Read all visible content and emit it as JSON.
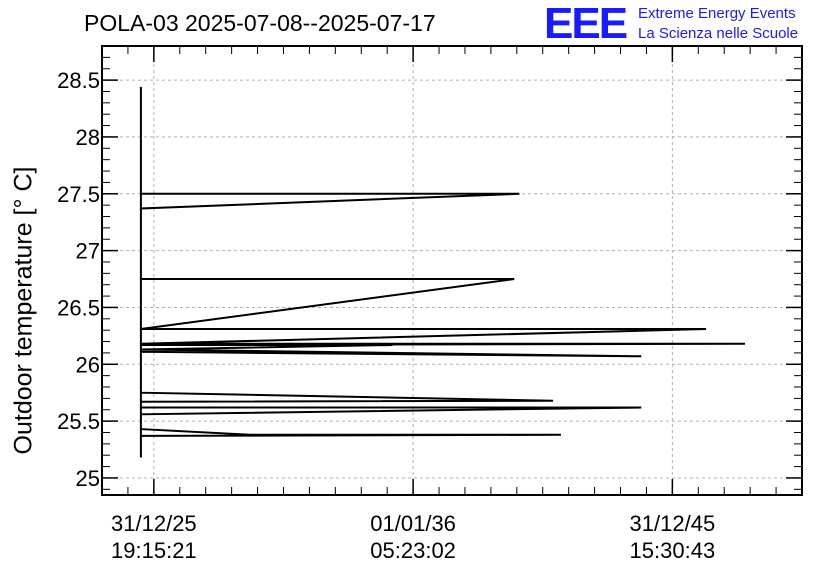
{
  "logo": {
    "mark": "EEE",
    "line1": "Extreme Energy Events",
    "line2": "La Scienza nelle Scuole",
    "color": "#1a1aff"
  },
  "chart_data": {
    "type": "line",
    "title": "POLA-03 2025-07-08--2025-07-17",
    "ylabel": "Outdoor temperature [° C]",
    "xlabel": "",
    "ylim": [
      24.85,
      28.8
    ],
    "xlim": [
      -0.2,
      2.5
    ],
    "grid": true,
    "yticks": [
      {
        "value": 25,
        "label": "25"
      },
      {
        "value": 25.5,
        "label": "25.5"
      },
      {
        "value": 26,
        "label": "26"
      },
      {
        "value": 26.5,
        "label": "26.5"
      },
      {
        "value": 27,
        "label": "27"
      },
      {
        "value": 27.5,
        "label": "27.5"
      },
      {
        "value": 28,
        "label": "28"
      },
      {
        "value": 28.5,
        "label": "28.5"
      }
    ],
    "xticks": [
      {
        "value": 0,
        "line1": "31/12/25",
        "line2": "19:15:21"
      },
      {
        "value": 1,
        "line1": "01/01/36",
        "line2": "05:23:02"
      },
      {
        "value": 2,
        "line1": "31/12/45",
        "line2": "15:30:43"
      }
    ],
    "series": [
      {
        "name": "Outdoor temperature",
        "color": "#000000",
        "points": [
          [
            -0.05,
            28.44
          ],
          [
            -0.05,
            25.18
          ],
          [
            -0.05,
            27.5
          ],
          [
            1.41,
            27.5
          ],
          [
            -0.05,
            27.37
          ],
          [
            -0.05,
            26.75
          ],
          [
            1.39,
            26.75
          ],
          [
            -0.05,
            26.31
          ],
          [
            2.13,
            26.31
          ],
          [
            -0.05,
            26.18
          ],
          [
            2.28,
            26.18
          ],
          [
            -0.05,
            26.17
          ],
          [
            0.92,
            26.17
          ],
          [
            -0.05,
            26.13
          ],
          [
            1.88,
            26.07
          ],
          [
            -0.05,
            26.11
          ],
          [
            -0.05,
            25.75
          ],
          [
            1.54,
            25.68
          ],
          [
            -0.05,
            25.67
          ],
          [
            -0.05,
            25.62
          ],
          [
            1.88,
            25.62
          ],
          [
            -0.05,
            25.56
          ],
          [
            -0.05,
            25.43
          ],
          [
            0.37,
            25.38
          ],
          [
            1.57,
            25.38
          ],
          [
            -0.05,
            25.37
          ]
        ]
      }
    ]
  }
}
